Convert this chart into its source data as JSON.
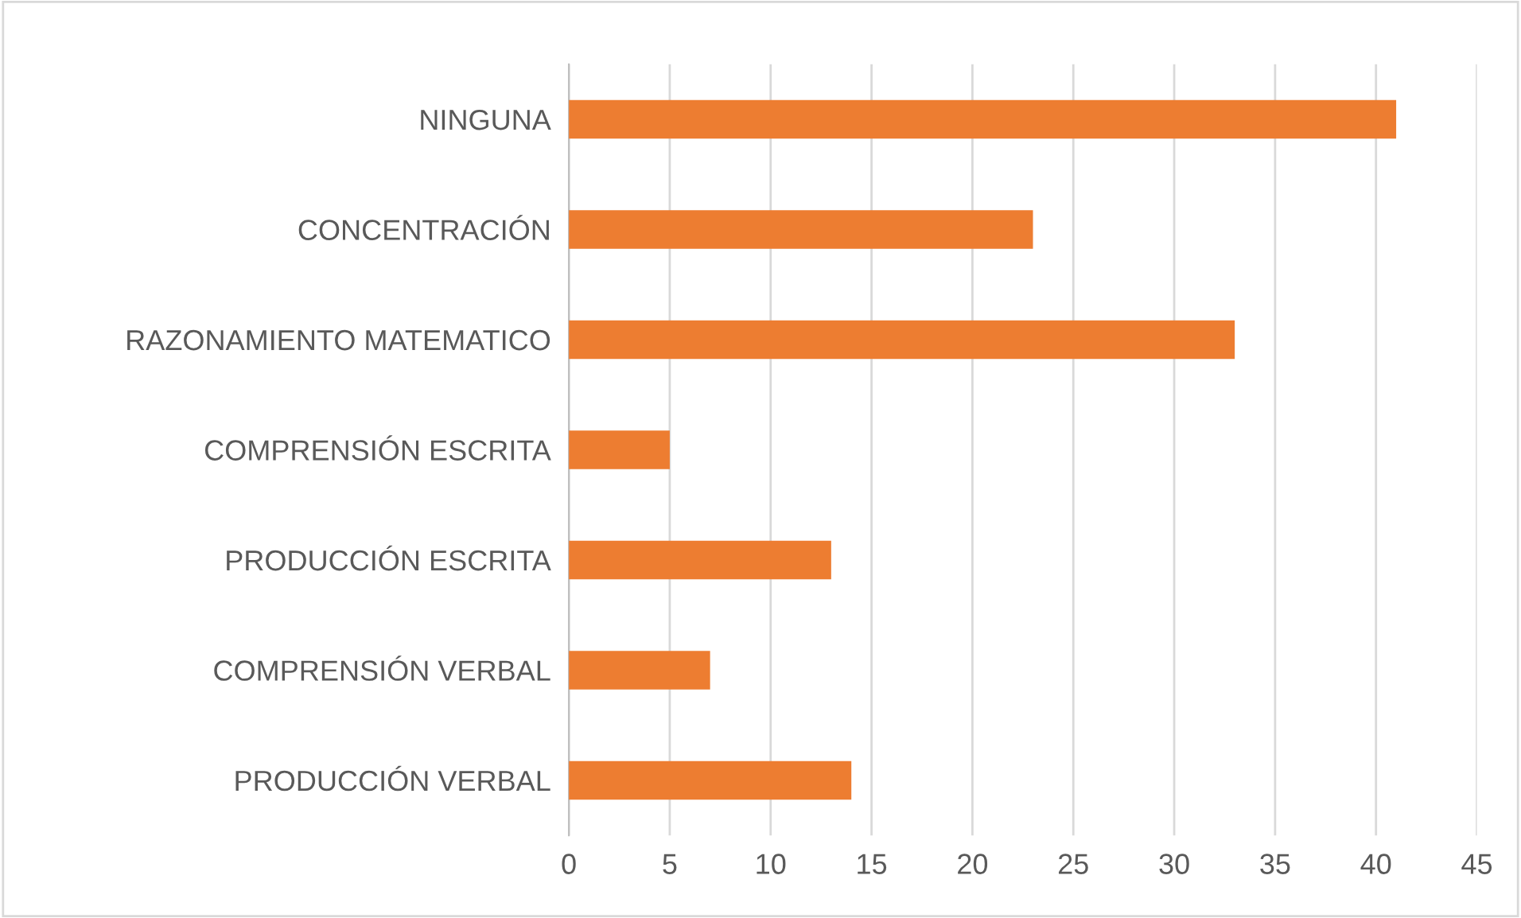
{
  "chart_data": {
    "type": "bar",
    "orientation": "horizontal",
    "categories": [
      "NINGUNA",
      "CONCENTRACIÓN",
      "RAZONAMIENTO MATEMATICO",
      "COMPRENSIÓN ESCRITA",
      "PRODUCCIÓN ESCRITA",
      "COMPRENSIÓN VERBAL",
      "PRODUCCIÓN VERBAL"
    ],
    "values": [
      41,
      23,
      33,
      5,
      13,
      7,
      14
    ],
    "color": "#ed7d31",
    "xlim": [
      0,
      45
    ],
    "xticks": [
      0,
      5,
      10,
      15,
      20,
      25,
      30,
      35,
      40,
      45
    ],
    "grid": "x"
  }
}
